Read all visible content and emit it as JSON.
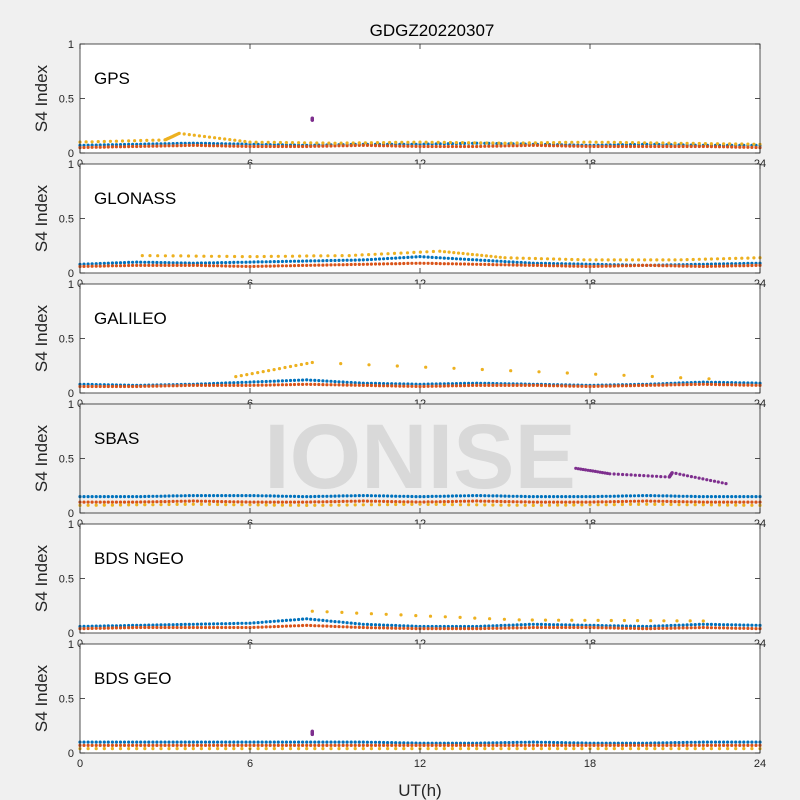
{
  "chart_data": {
    "type": "scatter",
    "title": "GDGZ20220307",
    "watermark": "IONISE",
    "xlabel": "UT(h)",
    "xlim": [
      0,
      24
    ],
    "xticks": [
      "0",
      "6",
      "12",
      "18",
      "24"
    ],
    "ylabel": "S4 Index",
    "ylim": [
      0,
      1
    ],
    "yticks": [
      "0",
      "0.5",
      "1"
    ],
    "grid": false,
    "colors": [
      "#0072bd",
      "#d95319",
      "#edb120",
      "#7e2f8e",
      "#77ac30",
      "#4dbeee",
      "#a2142f"
    ],
    "panels": [
      {
        "label": "GPS",
        "background": "#ffffff",
        "series": [
          {
            "x": [
              0,
              2,
              4,
              6,
              8,
              10,
              12,
              14,
              16,
              18,
              20,
              22,
              24
            ],
            "y": [
              0.07,
              0.08,
              0.09,
              0.08,
              0.07,
              0.08,
              0.08,
              0.09,
              0.08,
              0.07,
              0.08,
              0.07,
              0.07
            ]
          },
          {
            "x": [
              0,
              2,
              4,
              6,
              8,
              10,
              12,
              14,
              16,
              18,
              20,
              22,
              24
            ],
            "y": [
              0.05,
              0.06,
              0.07,
              0.06,
              0.06,
              0.07,
              0.06,
              0.06,
              0.07,
              0.06,
              0.06,
              0.06,
              0.05
            ]
          },
          {
            "x": [
              0,
              3,
              3.5,
              6,
              9,
              12,
              15,
              18,
              21,
              24
            ],
            "y": [
              0.1,
              0.12,
              0.18,
              0.1,
              0.09,
              0.1,
              0.09,
              0.1,
              0.09,
              0.08
            ]
          },
          {
            "x": [
              8.2,
              8.2
            ],
            "y": [
              0.3,
              0.32
            ]
          }
        ]
      },
      {
        "label": "GLONASS",
        "background": "#ffffff",
        "series": [
          {
            "x": [
              0,
              2,
              4,
              6,
              8,
              10,
              12,
              14,
              16,
              18,
              20,
              22,
              24
            ],
            "y": [
              0.08,
              0.1,
              0.09,
              0.1,
              0.11,
              0.12,
              0.15,
              0.12,
              0.09,
              0.08,
              0.07,
              0.08,
              0.09
            ]
          },
          {
            "x": [
              0,
              2,
              4,
              6,
              8,
              10,
              12,
              14,
              16,
              18,
              20,
              22,
              24
            ],
            "y": [
              0.06,
              0.07,
              0.07,
              0.06,
              0.07,
              0.08,
              0.09,
              0.08,
              0.07,
              0.06,
              0.07,
              0.06,
              0.07
            ]
          },
          {
            "x": [
              2.2,
              6,
              9.5,
              12.7,
              15,
              18,
              21,
              24
            ],
            "y": [
              0.16,
              0.15,
              0.16,
              0.2,
              0.14,
              0.12,
              0.12,
              0.14
            ]
          }
        ]
      },
      {
        "label": "GALILEO",
        "background": "#ffffff",
        "series": [
          {
            "x": [
              0,
              2,
              4,
              6,
              8,
              10,
              12,
              14,
              16,
              18,
              20,
              22,
              24
            ],
            "y": [
              0.08,
              0.07,
              0.08,
              0.1,
              0.12,
              0.09,
              0.08,
              0.09,
              0.08,
              0.07,
              0.08,
              0.1,
              0.09
            ]
          },
          {
            "x": [
              0,
              2,
              4,
              6,
              8,
              10,
              12,
              14,
              16,
              18,
              20,
              22,
              24
            ],
            "y": [
              0.06,
              0.06,
              0.07,
              0.07,
              0.08,
              0.07,
              0.06,
              0.07,
              0.07,
              0.06,
              0.07,
              0.08,
              0.07
            ]
          },
          {
            "x": [
              5.5,
              8.2,
              22.2
            ],
            "y": [
              0.15,
              0.28,
              0.13
            ]
          }
        ]
      },
      {
        "label": "SBAS",
        "background": "#f0f0f0",
        "series": [
          {
            "x": [
              0,
              2,
              4,
              6,
              8,
              10,
              12,
              14,
              16,
              18,
              20,
              22,
              24
            ],
            "y": [
              0.15,
              0.15,
              0.16,
              0.16,
              0.15,
              0.16,
              0.15,
              0.16,
              0.15,
              0.15,
              0.16,
              0.15,
              0.15
            ]
          },
          {
            "x": [
              0,
              2,
              4,
              6,
              8,
              10,
              12,
              14,
              16,
              18,
              20,
              22,
              24
            ],
            "y": [
              0.1,
              0.1,
              0.11,
              0.1,
              0.1,
              0.11,
              0.1,
              0.11,
              0.1,
              0.1,
              0.11,
              0.1,
              0.1
            ]
          },
          {
            "x": [
              0,
              4,
              8,
              12,
              16,
              20,
              24
            ],
            "y": [
              0.07,
              0.08,
              0.07,
              0.08,
              0.07,
              0.08,
              0.07
            ]
          },
          {
            "x": [
              17.5,
              18.7,
              20.8,
              20.9,
              22.8
            ],
            "y": [
              0.41,
              0.36,
              0.33,
              0.37,
              0.27
            ]
          }
        ]
      },
      {
        "label": "BDS NGEO",
        "background": "#ffffff",
        "series": [
          {
            "x": [
              0,
              2,
              4,
              6,
              8,
              10,
              12,
              14,
              16,
              18,
              20,
              22,
              24
            ],
            "y": [
              0.06,
              0.07,
              0.08,
              0.09,
              0.13,
              0.08,
              0.06,
              0.06,
              0.08,
              0.07,
              0.06,
              0.08,
              0.07
            ]
          },
          {
            "x": [
              0,
              2,
              4,
              6,
              8,
              10,
              12,
              14,
              16,
              18,
              20,
              22,
              24
            ],
            "y": [
              0.04,
              0.05,
              0.05,
              0.05,
              0.07,
              0.05,
              0.04,
              0.04,
              0.05,
              0.05,
              0.04,
              0.05,
              0.04
            ]
          },
          {
            "x": [
              8.2,
              15.5,
              22
            ],
            "y": [
              0.2,
              0.12,
              0.11
            ]
          }
        ]
      },
      {
        "label": "BDS GEO",
        "background": "#ffffff",
        "series": [
          {
            "x": [
              0,
              2,
              4,
              6,
              8,
              10,
              12,
              14,
              16,
              18,
              20,
              22,
              24
            ],
            "y": [
              0.1,
              0.1,
              0.1,
              0.1,
              0.1,
              0.1,
              0.09,
              0.09,
              0.1,
              0.09,
              0.09,
              0.1,
              0.1
            ]
          },
          {
            "x": [
              0,
              2,
              4,
              6,
              8,
              10,
              12,
              14,
              16,
              18,
              20,
              22,
              24
            ],
            "y": [
              0.07,
              0.07,
              0.07,
              0.07,
              0.07,
              0.07,
              0.07,
              0.07,
              0.07,
              0.07,
              0.07,
              0.07,
              0.07
            ]
          },
          {
            "x": [
              0,
              4,
              8,
              12,
              16,
              20,
              24
            ],
            "y": [
              0.04,
              0.04,
              0.04,
              0.04,
              0.04,
              0.04,
              0.04
            ]
          },
          {
            "x": [
              8.2,
              8.2
            ],
            "y": [
              0.17,
              0.2
            ]
          }
        ]
      }
    ]
  }
}
